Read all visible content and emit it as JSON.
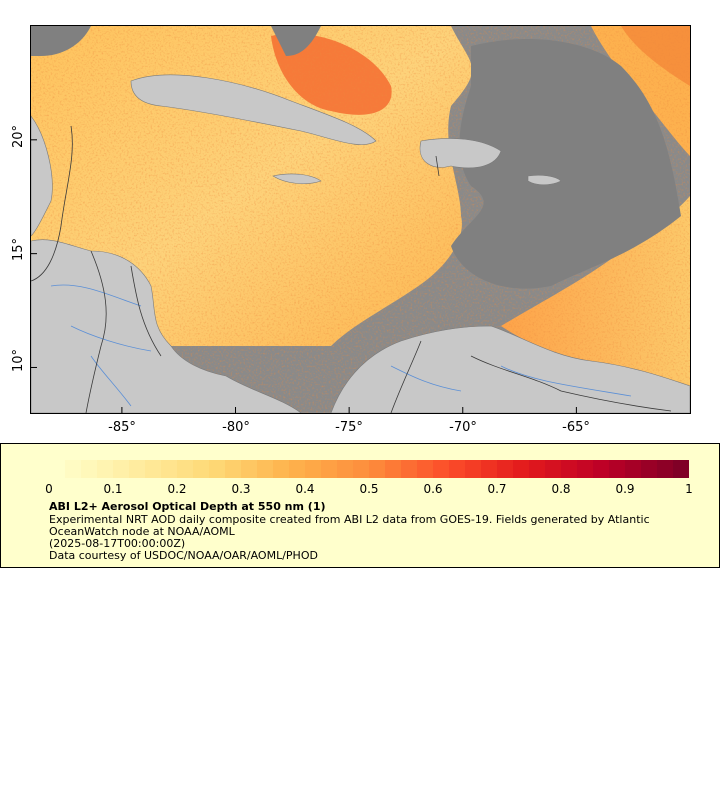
{
  "map": {
    "y_axis_labels": [
      "20°",
      "15°",
      "10°"
    ],
    "y_axis_values": [
      20,
      15,
      10
    ],
    "x_axis_labels": [
      "-85°",
      "-80°",
      "-75°",
      "-70°",
      "-65°"
    ],
    "x_axis_values": [
      -85,
      -80,
      -75,
      -70,
      -65
    ],
    "lon_range": [
      -89,
      -60
    ],
    "lat_range": [
      8,
      25
    ],
    "colors": {
      "no_data": "#808080",
      "land": "#c8c8c8",
      "rivers": "#5b8fd6",
      "borders": "#3a3a3a"
    }
  },
  "legend": {
    "colorbar_labels": [
      "0",
      "0.1",
      "0.2",
      "0.3",
      "0.4",
      "0.5",
      "0.6",
      "0.7",
      "0.8",
      "0.9",
      "1"
    ],
    "colorbar_range": [
      0,
      1
    ],
    "colorbar_colors": [
      "#ffffcc",
      "#ffeda0",
      "#fed976",
      "#feb24c",
      "#fd8d3c",
      "#fc4e2a",
      "#e31a1c",
      "#bd0026",
      "#800026"
    ],
    "title": "ABI L2+ Aerosol Optical Depth at 550 nm (1)",
    "description": "Experimental NRT AOD daily composite created from ABI L2 data from GOES-19. Fields generated by Atlantic OceanWatch node at NOAA/AOML",
    "time": "(2025-08-17T00:00:00Z)",
    "credit": "Data courtesy of USDOC/NOAA/OAR/AOML/PHOD"
  }
}
